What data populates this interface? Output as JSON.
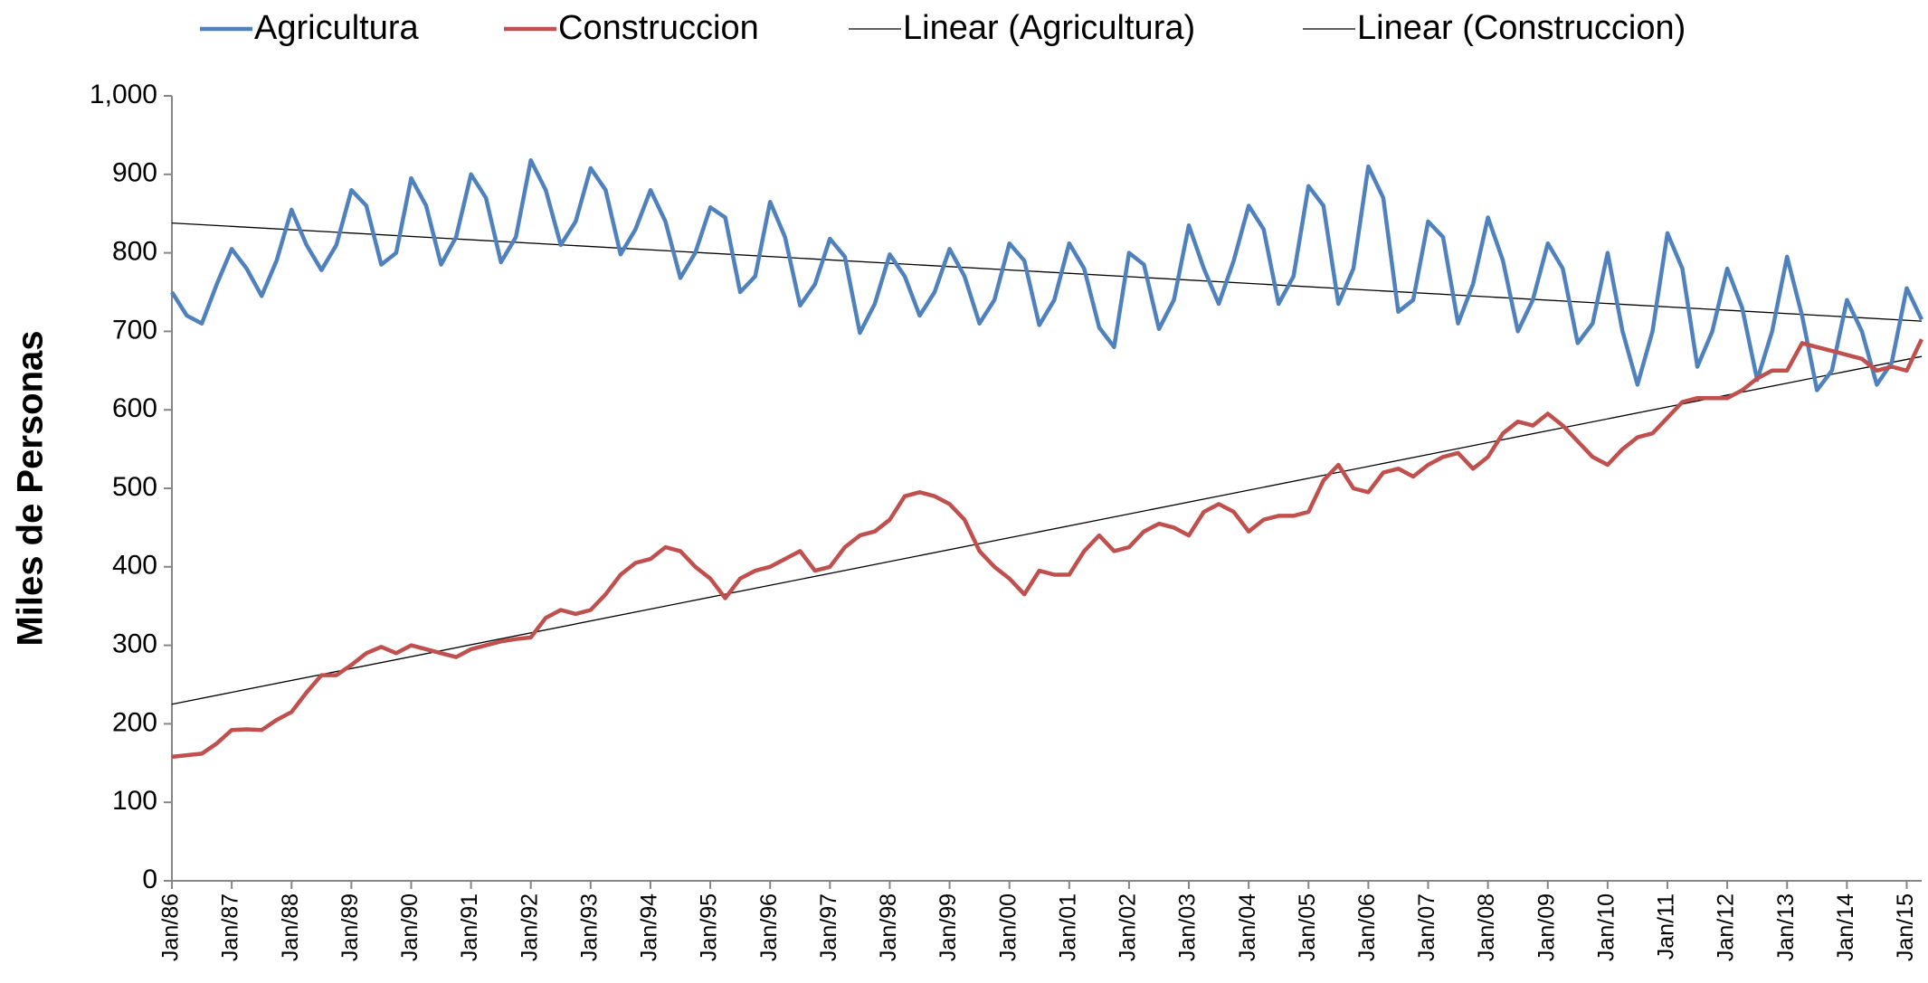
{
  "chart_data": {
    "type": "line",
    "y_label": "Miles de Personas",
    "categories": [
      "Jan/86",
      null,
      null,
      null,
      "Jan/87",
      null,
      null,
      null,
      "Jan/88",
      null,
      null,
      null,
      "Jan/89",
      null,
      null,
      null,
      "Jan/90",
      null,
      null,
      null,
      "Jan/91",
      null,
      null,
      null,
      "Jan/92",
      null,
      null,
      null,
      "Jan/93",
      null,
      null,
      null,
      "Jan/94",
      null,
      null,
      null,
      "Jan/95",
      null,
      null,
      null,
      "Jan/96",
      null,
      null,
      null,
      "Jan/97",
      null,
      null,
      null,
      "Jan/98",
      null,
      null,
      null,
      "Jan/99",
      null,
      null,
      null,
      "Jan/00",
      null,
      null,
      null,
      "Jan/01",
      null,
      null,
      null,
      "Jan/02",
      null,
      null,
      null,
      "Jan/03",
      null,
      null,
      null,
      "Jan/04",
      null,
      null,
      null,
      "Jan/05",
      null,
      null,
      null,
      "Jan/06",
      null,
      null,
      null,
      "Jan/07",
      null,
      null,
      null,
      "Jan/08",
      null,
      null,
      null,
      "Jan/09",
      null,
      null,
      null,
      "Jan/10",
      null,
      null,
      null,
      "Jan/11",
      null,
      null,
      null,
      "Jan/12",
      null,
      null,
      null,
      "Jan/13",
      null,
      null,
      null,
      "Jan/14",
      null,
      null,
      null,
      "Jan/15",
      null
    ],
    "series": [
      {
        "name": "Agricultura",
        "color": "#4f81bd",
        "values": [
          750,
          720,
          710,
          760,
          805,
          780,
          745,
          790,
          855,
          810,
          778,
          810,
          880,
          860,
          785,
          800,
          895,
          860,
          785,
          820,
          900,
          870,
          788,
          820,
          918,
          880,
          810,
          840,
          908,
          880,
          798,
          830,
          880,
          840,
          768,
          800,
          858,
          845,
          750,
          770,
          865,
          820,
          733,
          760,
          818,
          795,
          698,
          735,
          798,
          770,
          720,
          750,
          805,
          770,
          710,
          740,
          812,
          790,
          708,
          740,
          812,
          780,
          705,
          680,
          800,
          785,
          703,
          740,
          835,
          780,
          735,
          790,
          860,
          830,
          735,
          770,
          885,
          860,
          735,
          780,
          910,
          870,
          725,
          740,
          840,
          820,
          710,
          760,
          845,
          790,
          700,
          740,
          812,
          780,
          685,
          710,
          800,
          700,
          632,
          700,
          825,
          780,
          655,
          700,
          780,
          730,
          638,
          700,
          795,
          720,
          625,
          650,
          740,
          700,
          632,
          660,
          755,
          715
        ]
      },
      {
        "name": "Construccion",
        "color": "#c0504d",
        "values": [
          158,
          160,
          162,
          175,
          192,
          193,
          192,
          205,
          215,
          240,
          262,
          262,
          275,
          290,
          298,
          290,
          300,
          295,
          290,
          285,
          295,
          300,
          305,
          308,
          310,
          335,
          345,
          340,
          345,
          365,
          390,
          405,
          410,
          425,
          420,
          400,
          385,
          360,
          385,
          395,
          400,
          410,
          420,
          395,
          400,
          425,
          440,
          445,
          460,
          490,
          495,
          490,
          480,
          460,
          420,
          400,
          385,
          365,
          395,
          390,
          390,
          420,
          440,
          420,
          425,
          445,
          455,
          450,
          440,
          470,
          480,
          470,
          445,
          460,
          465,
          465,
          470,
          510,
          530,
          500,
          495,
          520,
          525,
          515,
          530,
          540,
          545,
          525,
          540,
          570,
          585,
          580,
          595,
          580,
          560,
          540,
          530,
          550,
          565,
          570,
          590,
          610,
          615,
          615,
          615,
          625,
          640,
          650,
          650,
          685,
          680,
          675,
          670,
          665,
          650,
          655,
          650,
          690
        ]
      }
    ],
    "trendlines": [
      {
        "name": "Linear (Agricultura)",
        "color": "#000000",
        "values": [
          838,
          713
        ]
      },
      {
        "name": "Linear (Construccion)",
        "color": "#000000",
        "values": [
          225,
          668
        ]
      }
    ],
    "ylim": [
      0,
      1000
    ],
    "yticks": [
      0,
      100,
      200,
      300,
      400,
      500,
      600,
      700,
      800,
      900,
      {
        "value": 1000,
        "label": "1,000"
      }
    ],
    "grid": false,
    "legend": "top"
  }
}
